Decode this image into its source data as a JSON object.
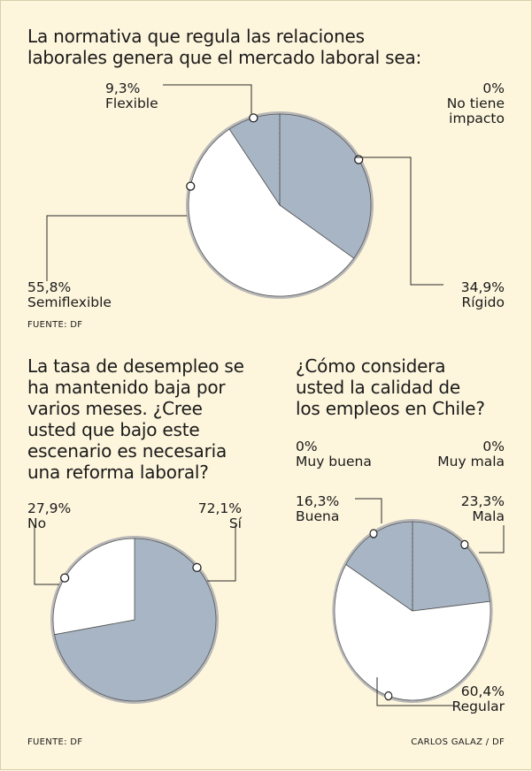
{
  "colors": {
    "background": "#fdf5dc",
    "slice_blue": "#a7b5c4",
    "slice_white": "#ffffff",
    "ring": "#b8b8b8",
    "text": "#1a1a1a"
  },
  "chart_data": [
    {
      "type": "pie",
      "title_lines": [
        "La normativa que regula las relaciones",
        "laborales genera que el mercado laboral sea:"
      ],
      "slices": [
        {
          "percent": "9,3%",
          "label": "Flexible",
          "value": 9.3
        },
        {
          "percent": "0%",
          "label_lines": [
            "No tiene",
            "impacto"
          ],
          "value": 0
        },
        {
          "percent": "34,9%",
          "label": "Rígido",
          "value": 34.9
        },
        {
          "percent": "55,8%",
          "label": "Semiflexible",
          "value": 55.8
        }
      ],
      "source": "FUENTE: DF"
    },
    {
      "type": "pie",
      "title_lines": [
        "La tasa de desempleo se",
        "ha mantenido baja por",
        "varios meses. ¿Cree",
        "usted que bajo este",
        "escenario es necesaria",
        "una reforma laboral?"
      ],
      "slices": [
        {
          "percent": "27,9%",
          "label": "No",
          "value": 27.9
        },
        {
          "percent": "72,1%",
          "label": "Sí",
          "value": 72.1
        }
      ]
    },
    {
      "type": "pie",
      "title_lines": [
        "¿Cómo considera",
        "usted la calidad de",
        "los empleos en Chile?"
      ],
      "slices": [
        {
          "percent": "0%",
          "label": "Muy buena",
          "value": 0
        },
        {
          "percent": "0%",
          "label": "Muy mala",
          "value": 0
        },
        {
          "percent": "16,3%",
          "label": "Buena",
          "value": 16.3
        },
        {
          "percent": "23,3%",
          "label": "Mala",
          "value": 23.3
        },
        {
          "percent": "60,4%",
          "label": "Regular",
          "value": 60.4
        }
      ]
    }
  ],
  "footer": {
    "source": "FUENTE: DF",
    "credit": "CARLOS GALAZ / DF"
  }
}
